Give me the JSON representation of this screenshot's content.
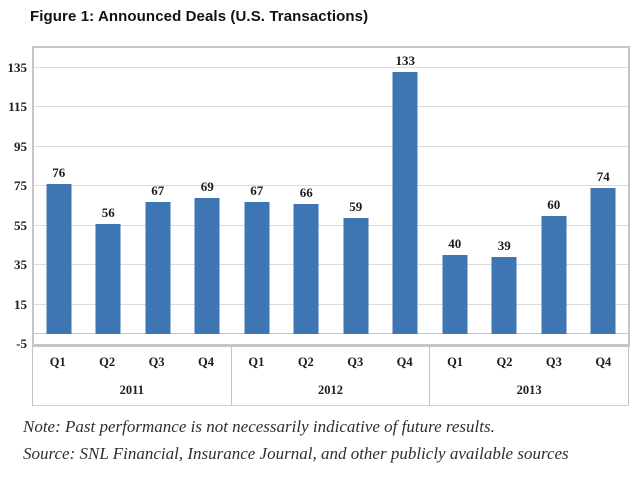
{
  "note": "Note: Past performance is not necessarily indicative of future results.",
  "source": "Source: SNL Financial, Insurance Journal, and other publicly available sources",
  "colors": {
    "bar": "#3e76b4",
    "grid": "#dbdbdb",
    "plot_border": "#c6c6c6",
    "text": "#201c18"
  },
  "chart_data": {
    "type": "bar",
    "title": "Figure 1: Announced Deals (U.S. Transactions)",
    "categories": [
      "Q1",
      "Q2",
      "Q3",
      "Q4"
    ],
    "groups": [
      {
        "year": "2011",
        "values": [
          76,
          56,
          67,
          69
        ]
      },
      {
        "year": "2012",
        "values": [
          67,
          66,
          59,
          133
        ]
      },
      {
        "year": "2013",
        "values": [
          40,
          39,
          60,
          74
        ]
      }
    ],
    "series": [
      {
        "name": "Announced Deals",
        "values": [
          76,
          56,
          67,
          69,
          67,
          66,
          59,
          133,
          40,
          39,
          60,
          74
        ]
      }
    ],
    "yticks": [
      -5,
      15,
      35,
      55,
      75,
      95,
      115,
      135
    ],
    "ylim": [
      -5,
      145
    ],
    "grid": true,
    "legend": false,
    "data_labels": true,
    "xlabel": "",
    "ylabel": ""
  }
}
